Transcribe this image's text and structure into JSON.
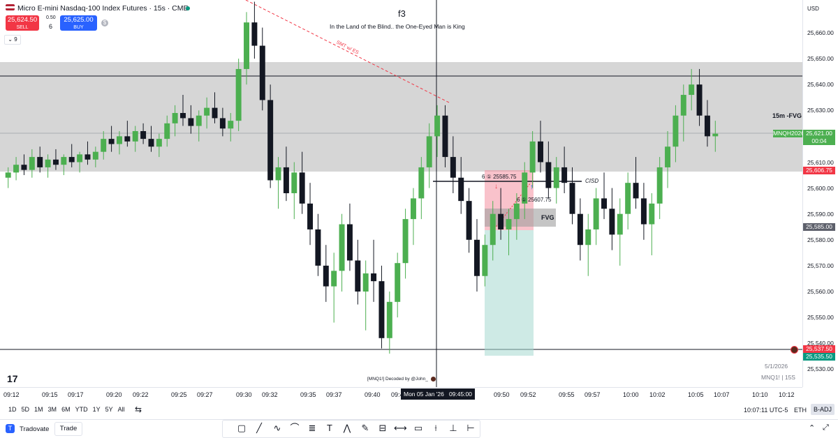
{
  "header": {
    "symbol_title": "Micro E-mini Nasdaq-100 Index Futures · 15s · CME",
    "sell_price": "25,624.50",
    "sell_label": "SELL",
    "buy_price": "25,625.00",
    "buy_label": "BUY",
    "spread": "0.50",
    "quantity": "6",
    "indicator_toggle": "9",
    "currency": "USD"
  },
  "chart_title": {
    "title": "f3",
    "subtitle": "In the Land of the Blind.. the One-Eyed Man is King"
  },
  "annotations": {
    "smt_label": "SMT w/ ES",
    "fvg15_label": "15m -FVG",
    "fvg_label": "FVG",
    "cisd_label": "CISD",
    "order1": "6 ① 25585.75",
    "order2": "6 ① 25607.75",
    "watermark": "[MNQ1!] Decoded by @John_",
    "date_label": "5/1/2026",
    "instrument_label": "MNQ1! | 15S"
  },
  "price_axis": {
    "ticks": [
      "25,660.00",
      "25,650.00",
      "25,640.00",
      "25,630.00",
      "25,620.00",
      "25,610.00",
      "25,600.00",
      "25,590.00",
      "25,580.00",
      "25,570.00",
      "25,560.00",
      "25,550.00",
      "25,540.00",
      "25,530.00"
    ],
    "current_symbol_tag": "MNQH2026",
    "current_price": "25,621.00",
    "countdown": "00:04",
    "tag_red_top": "25,606.75",
    "tag_gray": "25,585.00",
    "tag_red_bottom": "25,537.50",
    "tag_green_bottom": "25,535.50"
  },
  "time_axis": {
    "ticks": [
      "09:12",
      "09:15",
      "09:17",
      "09:20",
      "09:22",
      "09:25",
      "09:27",
      "09:30",
      "09:32",
      "09:35",
      "09:37",
      "09:40",
      "09:4",
      "09:50",
      "09:52",
      "09:55",
      "09:57",
      "10:00",
      "10:02",
      "10:05",
      "10:07",
      "10:10",
      "10:12"
    ],
    "crosshair_label": "Mon 05 Jan '26   09:45:00"
  },
  "range_bar": {
    "buttons": [
      "1D",
      "5D",
      "1M",
      "3M",
      "6M",
      "YTD",
      "1Y",
      "5Y",
      "All"
    ],
    "clock": "10:07:11 UTC-5",
    "session": "ETH",
    "adjustment": "B-ADJ"
  },
  "bottom_bar": {
    "broker": "Tradovate",
    "trade_tab": "Trade"
  },
  "colors": {
    "up": "#4caf50",
    "down": "#131722",
    "sell": "#f23645",
    "buy": "#2962ff",
    "fvg_gray": "#c8c8c8",
    "current_tag": "#4caf50"
  },
  "chart_data": {
    "type": "candlestick",
    "ylim": [
      25527,
      25670
    ],
    "ohlc": [
      [
        25604,
        25608,
        25600,
        25606
      ],
      [
        25606,
        25612,
        25603,
        25609
      ],
      [
        25609,
        25613,
        25605,
        25607
      ],
      [
        25607,
        25615,
        25604,
        25612
      ],
      [
        25612,
        25616,
        25606,
        25608
      ],
      [
        25608,
        25613,
        25604,
        25611
      ],
      [
        25611,
        25615,
        25607,
        25609
      ],
      [
        25609,
        25613,
        25605,
        25612
      ],
      [
        25612,
        25617,
        25608,
        25610
      ],
      [
        25610,
        25614,
        25606,
        25613
      ],
      [
        25613,
        25618,
        25609,
        25611
      ],
      [
        25611,
        25616,
        25608,
        25614
      ],
      [
        25614,
        25622,
        25611,
        25619
      ],
      [
        25619,
        25624,
        25614,
        25617
      ],
      [
        25617,
        25622,
        25613,
        25620
      ],
      [
        25620,
        25626,
        25616,
        25618
      ],
      [
        25618,
        25624,
        25614,
        25622
      ],
      [
        25622,
        25625,
        25617,
        25619
      ],
      [
        25619,
        25624,
        25614,
        25616
      ],
      [
        25616,
        25621,
        25612,
        25619
      ],
      [
        25619,
        25628,
        25616,
        25625
      ],
      [
        25625,
        25632,
        25620,
        25629
      ],
      [
        25629,
        25636,
        25624,
        25627
      ],
      [
        25627,
        25632,
        25621,
        25624
      ],
      [
        25624,
        25630,
        25618,
        25628
      ],
      [
        25628,
        25635,
        25623,
        25631
      ],
      [
        25631,
        25637,
        25625,
        25627
      ],
      [
        25627,
        25631,
        25620,
        25623
      ],
      [
        25623,
        25629,
        25618,
        25626
      ],
      [
        25626,
        25650,
        25622,
        25646
      ],
      [
        25646,
        25668,
        25640,
        25664
      ],
      [
        25664,
        25672,
        25650,
        25655
      ],
      [
        25655,
        25662,
        25630,
        25634
      ],
      [
        25634,
        25640,
        25600,
        25603
      ],
      [
        25603,
        25612,
        25592,
        25608
      ],
      [
        25608,
        25616,
        25595,
        25598
      ],
      [
        25598,
        25610,
        25588,
        25606
      ],
      [
        25606,
        25614,
        25590,
        25594
      ],
      [
        25594,
        25602,
        25578,
        25584
      ],
      [
        25584,
        25590,
        25566,
        25570
      ],
      [
        25570,
        25578,
        25556,
        25562
      ],
      [
        25562,
        25575,
        25548,
        25568
      ],
      [
        25568,
        25590,
        25560,
        25586
      ],
      [
        25586,
        25594,
        25568,
        25572
      ],
      [
        25572,
        25580,
        25555,
        25560
      ],
      [
        25560,
        25572,
        25545,
        25567
      ],
      [
        25567,
        25580,
        25556,
        25564
      ],
      [
        25564,
        25570,
        25538,
        25542
      ],
      [
        25542,
        25560,
        25536,
        25556
      ],
      [
        25556,
        25575,
        25550,
        25571
      ],
      [
        25571,
        25592,
        25565,
        25588
      ],
      [
        25588,
        25600,
        25578,
        25596
      ],
      [
        25596,
        25612,
        25588,
        25608
      ],
      [
        25608,
        25625,
        25600,
        25620
      ],
      [
        25620,
        25632,
        25612,
        25628
      ],
      [
        25628,
        25632,
        25608,
        25612
      ],
      [
        25612,
        25620,
        25598,
        25604
      ],
      [
        25604,
        25612,
        25590,
        25595
      ],
      [
        25595,
        25600,
        25575,
        25580
      ],
      [
        25580,
        25588,
        25560,
        25566
      ],
      [
        25566,
        25582,
        25562,
        25578
      ],
      [
        25578,
        25595,
        25572,
        25590
      ],
      [
        25590,
        25600,
        25580,
        25584
      ],
      [
        25584,
        25592,
        25574,
        25588
      ],
      [
        25588,
        25598,
        25580,
        25594
      ],
      [
        25594,
        25610,
        25588,
        25606
      ],
      [
        25606,
        25622,
        25600,
        25618
      ],
      [
        25618,
        25626,
        25606,
        25610
      ],
      [
        25610,
        25618,
        25596,
        25600
      ],
      [
        25600,
        25612,
        25594,
        25608
      ],
      [
        25608,
        25616,
        25598,
        25602
      ],
      [
        25602,
        25608,
        25586,
        25590
      ],
      [
        25590,
        25596,
        25572,
        25578
      ],
      [
        25578,
        25590,
        25566,
        25584
      ],
      [
        25584,
        25600,
        25578,
        25596
      ],
      [
        25596,
        25606,
        25588,
        25592
      ],
      [
        25592,
        25600,
        25576,
        25582
      ],
      [
        25582,
        25596,
        25570,
        25590
      ],
      [
        25590,
        25606,
        25584,
        25602
      ],
      [
        25602,
        25612,
        25592,
        25596
      ],
      [
        25596,
        25602,
        25580,
        25586
      ],
      [
        25586,
        25598,
        25574,
        25594
      ],
      [
        25594,
        25612,
        25588,
        25608
      ],
      [
        25608,
        25622,
        25600,
        25616
      ],
      [
        25616,
        25632,
        25610,
        25628
      ],
      [
        25628,
        25640,
        25618,
        25636
      ],
      [
        25636,
        25646,
        25630,
        25640
      ],
      [
        25640,
        25646,
        25624,
        25628
      ],
      [
        25628,
        25634,
        25616,
        25620
      ],
      [
        25620,
        25626,
        25614,
        25621
      ]
    ]
  }
}
